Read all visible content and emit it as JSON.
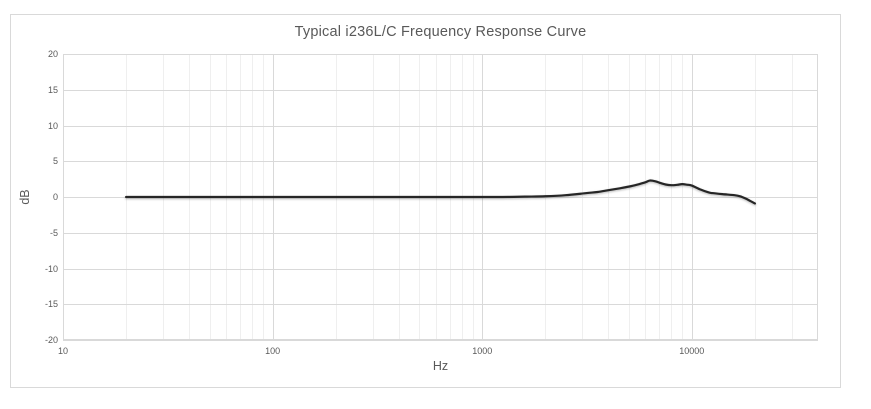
{
  "chart_data": {
    "type": "line",
    "title": "Typical i236L/C Frequency Response Curve",
    "xlabel": "Hz",
    "ylabel": "dB",
    "x_scale": "log",
    "xlim": [
      10,
      40000
    ],
    "ylim": [
      -20,
      20
    ],
    "x_ticks": [
      10,
      100,
      1000,
      10000
    ],
    "y_ticks": [
      20,
      15,
      10,
      5,
      0,
      -5,
      -10,
      -15,
      -20
    ],
    "grid": "major-y, major-x, minor-x (log decades)",
    "legend": "none",
    "series": [
      {
        "name": "frequency-response",
        "x_unit": "Hz",
        "y_unit": "dB",
        "points": [
          [
            20,
            0
          ],
          [
            25,
            0
          ],
          [
            31.5,
            0
          ],
          [
            40,
            0
          ],
          [
            50,
            0
          ],
          [
            63,
            0
          ],
          [
            80,
            0
          ],
          [
            100,
            0
          ],
          [
            125,
            0
          ],
          [
            160,
            0
          ],
          [
            200,
            0
          ],
          [
            250,
            0
          ],
          [
            315,
            0
          ],
          [
            400,
            0
          ],
          [
            500,
            0
          ],
          [
            630,
            0
          ],
          [
            800,
            0
          ],
          [
            1000,
            0
          ],
          [
            1250,
            0
          ],
          [
            1600,
            0.05
          ],
          [
            2000,
            0.1
          ],
          [
            2500,
            0.25
          ],
          [
            3150,
            0.55
          ],
          [
            3550,
            0.7
          ],
          [
            4000,
            0.95
          ],
          [
            4500,
            1.2
          ],
          [
            5000,
            1.45
          ],
          [
            5600,
            1.8
          ],
          [
            6000,
            2.05
          ],
          [
            6300,
            2.3
          ],
          [
            6700,
            2.2
          ],
          [
            7100,
            1.95
          ],
          [
            7500,
            1.75
          ],
          [
            8000,
            1.65
          ],
          [
            8500,
            1.7
          ],
          [
            9000,
            1.8
          ],
          [
            9500,
            1.72
          ],
          [
            10000,
            1.6
          ],
          [
            11000,
            1.05
          ],
          [
            12000,
            0.65
          ],
          [
            12500,
            0.55
          ],
          [
            14000,
            0.4
          ],
          [
            16000,
            0.25
          ],
          [
            17000,
            0.1
          ],
          [
            18000,
            -0.2
          ],
          [
            19000,
            -0.55
          ],
          [
            20000,
            -0.9
          ]
        ]
      }
    ]
  },
  "colors": {
    "title_text": "#595959",
    "tick_text": "#595959",
    "axis_title_text": "#595959",
    "major_gridline": "#d9d9d9",
    "minor_gridline": "#efefef",
    "plot_border": "#d9d9d9",
    "chart_border": "#d9d9d9",
    "curve": "#262626",
    "background": "#ffffff"
  }
}
